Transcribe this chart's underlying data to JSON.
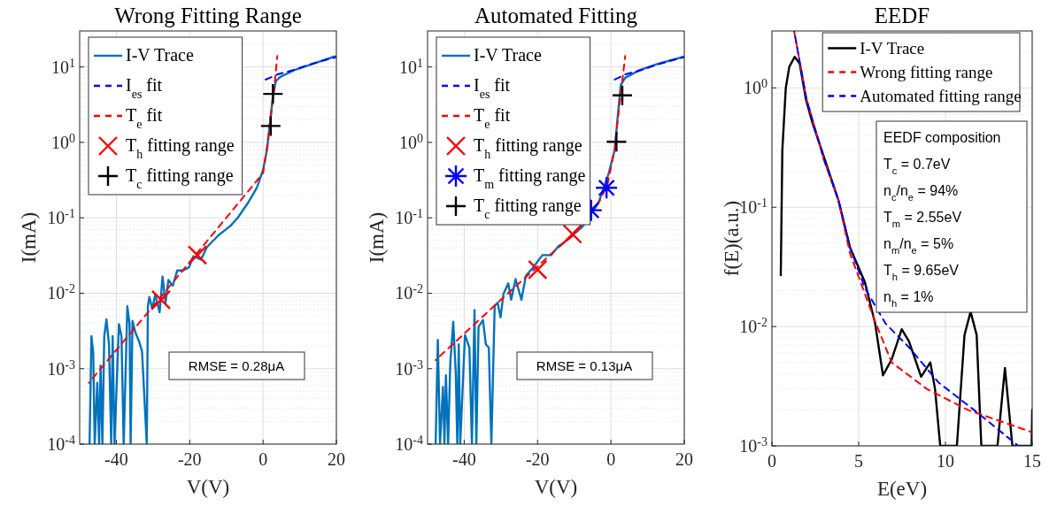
{
  "chart_data": [
    {
      "type": "line",
      "title": "Wrong Fitting Range",
      "xlabel": "V(V)",
      "ylabel": "I(mA)",
      "xlim": [
        -50,
        20
      ],
      "xticks": [
        -40,
        -20,
        0,
        20
      ],
      "ylim": [
        0.0001,
        30
      ],
      "yticks": [
        {
          "value": 0.0001,
          "label": "10$^{-4}$"
        },
        {
          "value": 0.001,
          "label": "10$^{-3}$"
        },
        {
          "value": 0.01,
          "label": "10$^{-2}$"
        },
        {
          "value": 0.1,
          "label": "10$^{-1}$"
        },
        {
          "value": 1,
          "label": "10$^{0}$"
        },
        {
          "value": 10,
          "label": "10$^{1}$"
        }
      ],
      "log": "y",
      "grid": true,
      "legend": "top left",
      "annotations": [
        "RMSE = 0.28μA"
      ],
      "series": [
        {
          "name": "I-V Trace",
          "color": "#0072bd",
          "line_style": "solid",
          "x": [
            -47.3,
            -46.8,
            -46.3,
            -45.9,
            -45.2,
            -44.7,
            -44.3,
            -43.8,
            -43.3,
            -42.7,
            -42,
            -41.4,
            -41,
            -40.5,
            -39.3,
            -38.6,
            -38,
            -37,
            -36.4,
            -36.1,
            -35.6,
            -34.8,
            -33.8,
            -33,
            -31.7,
            -31.4,
            -31,
            -30.2,
            -29.4,
            -28.2,
            -27.4,
            -26.6,
            -25.8,
            -24.6,
            -23.4,
            -21.8,
            -20.2,
            -19,
            -16.9,
            -15.3,
            -12.1,
            -8.9,
            -6.9,
            -4.1,
            -1.7,
            0,
            1.1,
            2.7,
            3.5,
            4.7,
            8.8,
            13.6,
            19.6
          ],
          "values": [
            0.0001,
            0.0027,
            0.0016,
            0.0001,
            0.00065,
            0.0001,
            0.0011,
            0.0001,
            0.0027,
            0.0045,
            0.0021,
            0.0001,
            0.0027,
            0.0001,
            0.0039,
            0.0027,
            0.0001,
            0.0067,
            0.0039,
            0.0001,
            0.0043,
            0.003,
            0.0023,
            0.0017,
            0.0001,
            0.0067,
            0.0089,
            0.0062,
            0.0096,
            0.0056,
            0.0166,
            0.0074,
            0.015,
            0.0126,
            0.02,
            0.02,
            0.022,
            0.031,
            0.028,
            0.041,
            0.059,
            0.078,
            0.1,
            0.158,
            0.25,
            0.43,
            0.81,
            4.1,
            6.5,
            7.4,
            9.2,
            11,
            13.8
          ]
        },
        {
          "name": "I$_{es}$ fit",
          "color": "#0000ff",
          "line_style": "dashed",
          "x": [
            0.7,
            4,
            8,
            12,
            16,
            20
          ],
          "values": [
            6.8,
            8,
            9,
            10.5,
            12,
            13.5
          ]
        },
        {
          "name": "T$_{e}$ fit",
          "color": "#ff0000",
          "line_style": "dashed",
          "x": [
            -47.5,
            -30,
            -15,
            0,
            1,
            3,
            3.9
          ],
          "values": [
            0.00065,
            0.0067,
            0.051,
            0.39,
            0.8,
            5,
            14
          ]
        },
        {
          "name": "T$_{h}$ fitting range",
          "type": "scatter",
          "marker": "cross",
          "color": "#ff0000",
          "x": [
            -27.8,
            -17.9
          ],
          "values": [
            0.0082,
            0.032
          ]
        },
        {
          "name": "T$_{c}$ fitting range",
          "type": "scatter",
          "color": "#000000",
          "x": [
            2.1,
            2.7
          ],
          "values": [
            1.65,
            4.4
          ]
        }
      ]
    },
    {
      "type": "line",
      "title": "Automated Fitting",
      "xlabel": "V(V)",
      "ylabel": "I(mA)",
      "xlim": [
        -50,
        20
      ],
      "xticks": [
        -40,
        -20,
        0,
        20
      ],
      "ylim": [
        0.0001,
        30
      ],
      "yticks": [
        {
          "value": 0.0001,
          "label": "10$^{-4}$"
        },
        {
          "value": 0.001,
          "label": "10$^{-3}$"
        },
        {
          "value": 0.01,
          "label": "10$^{-2}$"
        },
        {
          "value": 0.1,
          "label": "10$^{-1}$"
        },
        {
          "value": 1,
          "label": "10$^{0}$"
        },
        {
          "value": 10,
          "label": "10$^{1}$"
        }
      ],
      "log": "y",
      "grid": true,
      "legend": "top left",
      "annotations": [
        "RMSE = 0.13μA"
      ],
      "series": [
        {
          "name": "I-V Trace",
          "color": "#0072bd",
          "line_style": "solid",
          "x": [
            -47.8,
            -47.2,
            -46.6,
            -45.8,
            -45.4,
            -45,
            -44.4,
            -43.8,
            -43,
            -42.3,
            -41.9,
            -41.5,
            -41.1,
            -39.8,
            -38.6,
            -37.9,
            -37.2,
            -36.7,
            -36.1,
            -34.9,
            -34.1,
            -33.3,
            -32.6,
            -31.7,
            -30.9,
            -30.1,
            -29.3,
            -28,
            -27.2,
            -26,
            -24.4,
            -23.2,
            -21.2,
            -18.7,
            -16.3,
            -14.3,
            -12.3,
            -7.8,
            -3.4,
            -0.6,
            1.05,
            1.9,
            2.7,
            3.9,
            7.9,
            12.8,
            20
          ],
          "values": [
            0.0001,
            0.0024,
            0.0001,
            0.00057,
            0.0001,
            0.00082,
            0.0001,
            0.0012,
            0.0042,
            0.00085,
            0.0001,
            0.0021,
            0.0001,
            0.0028,
            0.0019,
            0.0001,
            0.006,
            0.0001,
            0.0036,
            0.0044,
            0.0021,
            0.0019,
            0.0001,
            0.0068,
            0.0075,
            0.0048,
            0.0098,
            0.0135,
            0.0082,
            0.0154,
            0.0082,
            0.017,
            0.022,
            0.032,
            0.032,
            0.042,
            0.049,
            0.076,
            0.158,
            0.39,
            0.8,
            2.35,
            5.8,
            7.2,
            9.1,
            11,
            13.7
          ]
        },
        {
          "name": "I$_{es}$ fit",
          "color": "#0000ff",
          "line_style": "dashed",
          "x": [
            1.05,
            4,
            8,
            12,
            16,
            20
          ],
          "values": [
            6.8,
            8,
            9,
            10.5,
            12,
            13.5
          ]
        },
        {
          "name": "T$_{e}$ fit",
          "color": "#ff0000",
          "line_style": "dashed",
          "x": [
            -47.8,
            -30,
            -15,
            -10,
            -3,
            -1,
            1,
            2,
            3,
            3.9
          ],
          "values": [
            0.0013,
            0.0082,
            0.038,
            0.06,
            0.17,
            0.27,
            0.8,
            2.3,
            6,
            14
          ]
        },
        {
          "name": "T$_{h}$ fitting range",
          "type": "scatter",
          "marker": "cross",
          "color": "#ff0000",
          "x": [
            -20,
            -10.5
          ],
          "values": [
            0.0205,
            0.061
          ]
        },
        {
          "name": "T$_{m}$ fitting range",
          "type": "scatter",
          "marker": "star",
          "color": "#0000ff",
          "x": [
            -5.4,
            -1.2
          ],
          "values": [
            0.126,
            0.25
          ]
        },
        {
          "name": "T$_{c}$ fitting range",
          "type": "scatter",
          "color": "#000000",
          "x": [
            1.5,
            3.1
          ],
          "values": [
            1.02,
            4.2
          ]
        }
      ]
    },
    {
      "type": "line",
      "title": "EEDF",
      "xlabel": "E(eV)",
      "ylabel": "f(E)(a.u.)",
      "xlim": [
        0,
        15
      ],
      "xticks": [
        0,
        5,
        10,
        15
      ],
      "ylim": [
        0.001,
        3
      ],
      "yticks": [
        {
          "value": 0.001,
          "label": "10$^{-3}$"
        },
        {
          "value": 0.01,
          "label": "10$^{-2}$"
        },
        {
          "value": 0.1,
          "label": "10$^{-1}$"
        },
        {
          "value": 1,
          "label": "10$^{0}$"
        }
      ],
      "log": "y",
      "grid": true,
      "legend": "top right",
      "annotations": [
        "EEDF composition",
        "T$_{c}$ = 0.7eV",
        "n$_{c}$/n$_{e}$ = 94%",
        "T$_{m}$ = 2.55eV",
        "n$_{m}$/n$_{e}$ = 5%",
        "T$_{h}$ = 9.65eV",
        "n$_{h}$ = 1%"
      ],
      "series": [
        {
          "name": "I-V Trace",
          "color": "#000000",
          "line_style": "solid",
          "x": [
            0.51,
            0.6,
            0.8,
            1.0,
            1.31,
            1.6,
            1.96,
            2.3,
            3.83,
            4.5,
            5.36,
            5.95,
            6.4,
            6.9,
            7.48,
            7.9,
            8.6,
            9.13,
            9.4,
            9.7,
            10.66,
            11.1,
            11.45,
            11.8,
            12.07,
            13.0,
            13.43,
            13.86,
            14.97,
            15
          ],
          "values": [
            0.027,
            0.3,
            1.0,
            1.5,
            1.82,
            1.6,
            0.8,
            0.53,
            0.115,
            0.046,
            0.0235,
            0.0106,
            0.0039,
            0.0053,
            0.0095,
            0.0075,
            0.0038,
            0.005,
            0.003,
            0.001,
            0.001,
            0.0085,
            0.0133,
            0.0085,
            0.001,
            0.001,
            0.0045,
            0.001,
            0.001,
            0.002
          ]
        },
        {
          "name": "Wrong fitting range",
          "color": "#ff0000",
          "line_style": "dashed",
          "x": [
            1.28,
            2.0,
            3.0,
            3.83,
            4.5,
            5.87,
            6.9,
            8.93,
            11.3,
            15
          ],
          "values": [
            3,
            0.8,
            0.25,
            0.115,
            0.041,
            0.0118,
            0.005,
            0.003,
            0.002,
            0.0013
          ]
        },
        {
          "name": "Automated fitting range",
          "color": "#0000ff",
          "line_style": "dashed",
          "x": [
            1.28,
            2.0,
            3.0,
            3.83,
            4.5,
            5.36,
            6.55,
            7.9,
            9.6,
            11.65,
            14.2
          ],
          "values": [
            3,
            0.8,
            0.25,
            0.115,
            0.046,
            0.021,
            0.0106,
            0.0067,
            0.0034,
            0.002,
            0.001
          ]
        }
      ]
    }
  ]
}
